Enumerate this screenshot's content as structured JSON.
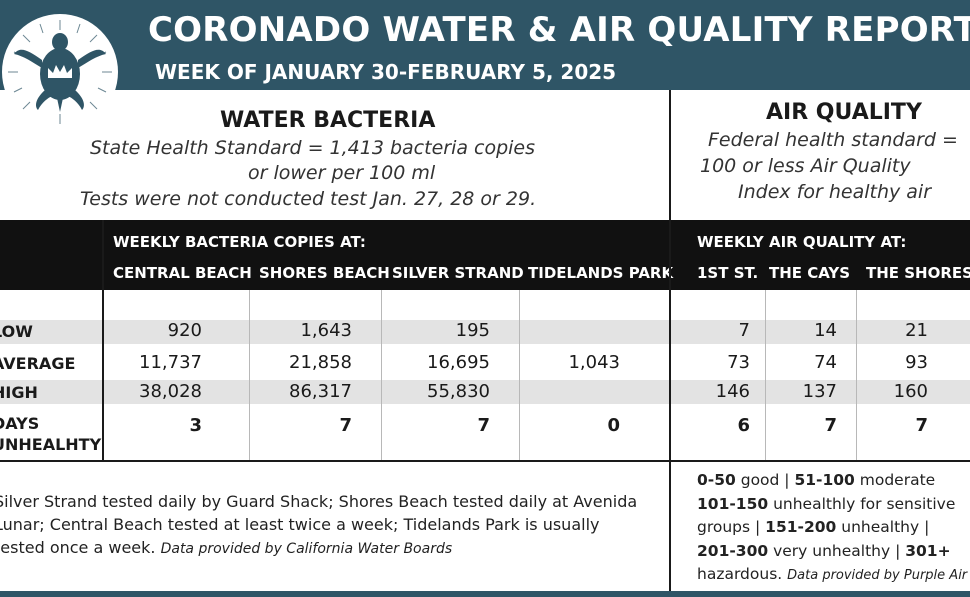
{
  "header": {
    "title": "CORONADO WATER & AIR QUALITY REPORT",
    "subtitle": "WEEK OF JANUARY 30-FEBRUARY 5, 2025"
  },
  "water": {
    "title": "WATER BACTERIA",
    "lines": [
      "State Health Standard  = 1,413 bacteria copies",
      "or lower per 100 ml",
      "Tests were not conducted test Jan. 27, 28 or 29."
    ],
    "table_heading": "WEEKLY BACTERIA COPIES AT:",
    "columns": [
      "CENTRAL BEACH",
      "SHORES BEACH",
      "SILVER STRAND",
      "TIDELANDS PARK"
    ],
    "rows": {
      "low": [
        "920",
        "1,643",
        "195",
        ""
      ],
      "average": [
        "11,737",
        "21,858",
        "16,695",
        "1,043"
      ],
      "high": [
        "38,028",
        "86,317",
        "55,830",
        ""
      ],
      "days": [
        "3",
        "7",
        "7",
        "0"
      ]
    },
    "footnote": "Silver Strand tested daily by Guard Shack; Shores Beach tested daily at Avenida Lunar; Central Beach tested at least twice a week; Tidelands Park is usually tested once a week.",
    "source": "Data provided by California Water Boards"
  },
  "air": {
    "title": "AIR QUALITY",
    "lines": [
      "Federal health standard =",
      "100 or less Air Quality",
      "Index for healthy air"
    ],
    "table_heading": "WEEKLY AIR QUALITY AT:",
    "columns": [
      "1ST ST.",
      "THE CAYS",
      "THE SHORES"
    ],
    "rows": {
      "low": [
        "7",
        "14",
        "21"
      ],
      "average": [
        "73",
        "74",
        "93"
      ],
      "high": [
        "146",
        "137",
        "160"
      ],
      "days": [
        "6",
        "7",
        "7"
      ]
    },
    "legend": {
      "r1": "0-50",
      "t1": " good | ",
      "r2": "51-100",
      "t2": " moderate",
      "r3": "101-150",
      "t3": " unhealthly for sensitive",
      "t4": "groups | ",
      "r5": "151-200",
      "t5": " unhealthy |",
      "r6": "201-300",
      "t6": " very unhealthy | ",
      "r7": "301+",
      "t8": "hazardous. ",
      "source": "Data provided by Purple Air"
    }
  },
  "row_labels": {
    "low": "LOW",
    "average": "AVERAGE",
    "high": "HIGH",
    "days_1": "DAYS",
    "days_2": "UNHEALHTY"
  },
  "colors": {
    "header_bg": "#2f5566",
    "table_head_bg": "#111111",
    "shade": "#e3e3e3"
  },
  "icons": {
    "logo": "sea-turtle-crown-logo"
  }
}
